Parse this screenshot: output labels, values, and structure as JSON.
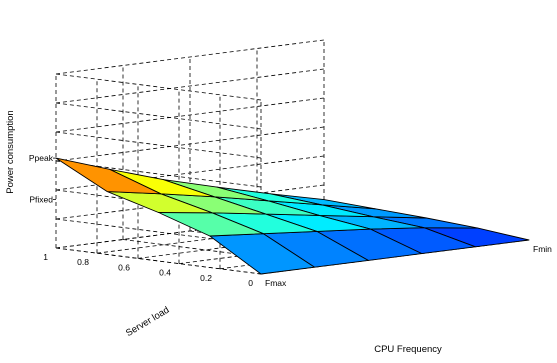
{
  "chart_data": {
    "type": "surface",
    "title": "",
    "xlabel": "CPU Frequency",
    "ylabel": "Server load",
    "zlabel": "Power consumption",
    "x_tick_labels": [
      "Fmax",
      "Fmin"
    ],
    "y_tick_labels": [
      "0",
      "0.2",
      "0.4",
      "0.6",
      "0.8",
      "1"
    ],
    "z_tick_labels": [
      "Pfixed",
      "Ppeak"
    ],
    "grid": true,
    "colormap": "jet",
    "frequency_steps": [
      0,
      0.2,
      0.4,
      0.6,
      0.8,
      1.0
    ],
    "load_steps": [
      0,
      0.25,
      0.5,
      0.75,
      1.0
    ],
    "z_values": [
      [
        0.0,
        0.0,
        0.0,
        0.0,
        0.0,
        0.0
      ],
      [
        0.35,
        0.3,
        0.25,
        0.2,
        0.14,
        0.06
      ],
      [
        0.54,
        0.46,
        0.37,
        0.28,
        0.19,
        0.1
      ],
      [
        0.7,
        0.6,
        0.49,
        0.37,
        0.25,
        0.13
      ],
      [
        1.0,
        0.8,
        0.61,
        0.45,
        0.3,
        0.16
      ]
    ]
  }
}
